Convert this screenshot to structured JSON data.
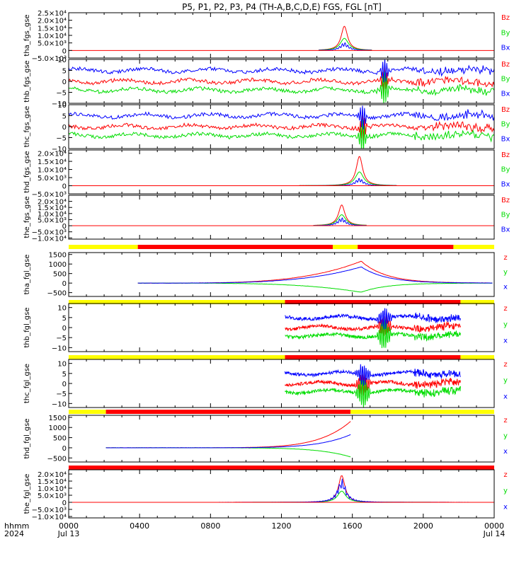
{
  "title": "P5, P1, P2, P3, P4 (TH-A,B,C,D,E) FGS, FGL [nT]",
  "colors": {
    "x": "#0000ff",
    "y": "#00dd00",
    "z": "#ff0000",
    "bar_yellow": "#ffff00",
    "bar_red": "#ff0000",
    "axis": "#000000"
  },
  "time_axis": {
    "label_top": "hhmm",
    "label_bottom": "2024",
    "ticks": [
      {
        "top": "0000",
        "bottom": "Jul 13"
      },
      {
        "top": "0400",
        "bottom": ""
      },
      {
        "top": "0800",
        "bottom": ""
      },
      {
        "top": "1200",
        "bottom": ""
      },
      {
        "top": "1600",
        "bottom": ""
      },
      {
        "top": "2000",
        "bottom": ""
      },
      {
        "top": "0000",
        "bottom": "Jul 14"
      }
    ]
  },
  "chart_data": [
    {
      "type": "line",
      "ylabel": "tha_fgs_gse",
      "legend": [
        "Bz",
        "By",
        "Bx"
      ],
      "yticks": [
        "2.5×10⁴",
        "2.0×10⁴",
        "1.5×10⁴",
        "1.0×10⁴",
        "5.0×10³",
        "0",
        "−5.0×10³"
      ],
      "ylim": [
        -5000,
        25000
      ],
      "shape": "peak",
      "data_range_hours": [
        14.1,
        17.1
      ],
      "peak_hour": 15.55,
      "peak_values": {
        "z": 16000,
        "y": 8000,
        "x": 4000
      },
      "baseline_values": {
        "z": 0,
        "y": 0,
        "x": 0
      }
    },
    {
      "type": "line",
      "ylabel": "thb_fgs_gse",
      "legend": [
        "Bz",
        "By",
        "Bx"
      ],
      "yticks": [
        "10",
        "5",
        "0",
        "−5",
        "−10"
      ],
      "ylim": [
        -10,
        10
      ],
      "shape": "noisy",
      "data_range_hours": [
        0,
        24
      ],
      "baseline_values": {
        "x": 5,
        "z": 0,
        "y": -4
      },
      "disturbance_hour": 17.8
    },
    {
      "type": "line",
      "ylabel": "thc_fgs_gse",
      "legend": [
        "Bz",
        "By",
        "Bx"
      ],
      "yticks": [
        "10",
        "5",
        "0",
        "−5",
        "−10"
      ],
      "ylim": [
        -10,
        10
      ],
      "shape": "noisy",
      "data_range_hours": [
        0,
        24
      ],
      "baseline_values": {
        "x": 5,
        "z": 0,
        "y": -4
      },
      "disturbance_hour": 16.6
    },
    {
      "type": "line",
      "ylabel": "thd_fgs_gse",
      "legend": [
        "Bz",
        "By",
        "Bx"
      ],
      "yticks": [
        "2.0×10⁴",
        "1.5×10⁴",
        "1.0×10⁴",
        "5.0×10³",
        "0",
        "−5.0×10³"
      ],
      "ylim": [
        -5000,
        22000
      ],
      "shape": "peak",
      "data_range_hours": [
        13.0,
        18.5
      ],
      "peak_hour": 16.4,
      "peak_values": {
        "z": 18000,
        "y": 8500,
        "x": 3500
      },
      "baseline_values": {
        "z": 0,
        "y": 0,
        "x": 0
      }
    },
    {
      "type": "line",
      "ylabel": "the_fgs_gse",
      "legend": [
        "Bz",
        "By",
        "Bx"
      ],
      "yticks": [
        "2.0×10⁴",
        "1.5×10⁴",
        "1.0×10⁴",
        "5.0×10³",
        "0",
        "−5.0×10³",
        "−1.0×10⁴"
      ],
      "ylim": [
        -11000,
        25000
      ],
      "shape": "peak",
      "data_range_hours": [
        13.8,
        16.8
      ],
      "peak_hour": 15.4,
      "peak_values": {
        "z": 17000,
        "y": 9000,
        "x": 5000
      },
      "baseline_values": {
        "z": 0,
        "y": 0,
        "x": 0
      }
    },
    {
      "type": "line",
      "ylabel": "tha_fgl_gse",
      "legend": [
        "z",
        "y",
        "x"
      ],
      "yticks": [
        "1500",
        "1000",
        "500",
        "0",
        "−500"
      ],
      "ylim": [
        -700,
        1600
      ],
      "shape": "ramp",
      "data_range_hours": [
        3.9,
        23.9
      ],
      "peak_hour": 16.5,
      "peak_values": {
        "z": 1150,
        "x": 850,
        "y": -480
      },
      "baseline_values": {
        "z": 0,
        "x": 0,
        "y": 0
      },
      "status_bar": [
        {
          "from": 0,
          "to": 3.9,
          "color": "yellow"
        },
        {
          "from": 3.9,
          "to": 14.9,
          "color": "red"
        },
        {
          "from": 14.9,
          "to": 16.3,
          "color": "yellow"
        },
        {
          "from": 16.3,
          "to": 21.7,
          "color": "red"
        },
        {
          "from": 21.7,
          "to": 24,
          "color": "yellow"
        }
      ]
    },
    {
      "type": "line",
      "ylabel": "thb_fgl_gse",
      "legend": [
        "z",
        "y",
        "x"
      ],
      "yticks": [
        "10",
        "5",
        "0",
        "−5",
        "−10"
      ],
      "ylim": [
        -12,
        12
      ],
      "shape": "noisy",
      "data_range_hours": [
        12.2,
        22.1
      ],
      "baseline_values": {
        "x": 5,
        "z": 0,
        "y": -4
      },
      "disturbance_hour": 17.8,
      "status_bar": [
        {
          "from": 0,
          "to": 12.2,
          "color": "yellow"
        },
        {
          "from": 12.2,
          "to": 22.1,
          "color": "red"
        },
        {
          "from": 22.1,
          "to": 24,
          "color": "yellow"
        }
      ]
    },
    {
      "type": "line",
      "ylabel": "thc_fgl_gse",
      "legend": [
        "z",
        "y",
        "x"
      ],
      "yticks": [
        "10",
        "5",
        "0",
        "−5",
        "−10"
      ],
      "ylim": [
        -12,
        12
      ],
      "shape": "noisy",
      "data_range_hours": [
        12.2,
        22.1
      ],
      "baseline_values": {
        "x": 5,
        "z": 0,
        "y": -4
      },
      "disturbance_hour": 16.6,
      "status_bar": [
        {
          "from": 0,
          "to": 12.2,
          "color": "yellow"
        },
        {
          "from": 12.2,
          "to": 22.1,
          "color": "red"
        },
        {
          "from": 22.1,
          "to": 24,
          "color": "yellow"
        }
      ]
    },
    {
      "type": "line",
      "ylabel": "thd_fgl_gse",
      "legend": [
        "z",
        "y",
        "x"
      ],
      "yticks": [
        "1500",
        "1000",
        "500",
        "0",
        "−500"
      ],
      "ylim": [
        -700,
        1600
      ],
      "shape": "growth",
      "data_range_hours": [
        2.1,
        15.9
      ],
      "peak_hour": 15.9,
      "peak_values": {
        "z": 1300,
        "x": 650,
        "y": -450
      },
      "baseline_values": {
        "z": 0,
        "x": 0,
        "y": 0
      },
      "status_bar": [
        {
          "from": 0,
          "to": 2.1,
          "color": "yellow"
        },
        {
          "from": 2.1,
          "to": 15.9,
          "color": "red"
        },
        {
          "from": 15.9,
          "to": 24,
          "color": "yellow"
        }
      ]
    },
    {
      "type": "line",
      "ylabel": "the_fgl_gse",
      "legend": [
        "z",
        "y",
        "x"
      ],
      "yticks": [
        "2.0×10⁴",
        "1.5×10⁴",
        "1.0×10⁴",
        "5.0×10³",
        "0",
        "−5.0×10³",
        "−1.0×10⁴"
      ],
      "ylim": [
        -11000,
        23000
      ],
      "shape": "peak",
      "data_range_hours": [
        0,
        24
      ],
      "peak_hour": 15.4,
      "peak_values": {
        "z": 19000,
        "y": 8000,
        "x": 13000
      },
      "baseline_values": {
        "z": 0,
        "y": 0,
        "x": 0
      },
      "status_bar": [
        {
          "from": 0,
          "to": 24,
          "color": "red"
        }
      ]
    }
  ]
}
